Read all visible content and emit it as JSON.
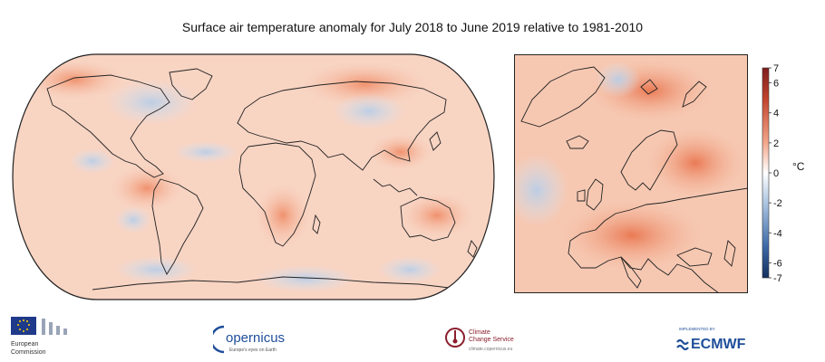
{
  "title": "Surface air temperature anomaly for July 2018 to June 2019 relative to 1981-2010",
  "colorbar": {
    "unit": "°C",
    "ticks": [
      7,
      6,
      4,
      2,
      0,
      -2,
      -4,
      -6,
      -7
    ],
    "range": [
      -7,
      7
    ],
    "colors": {
      "warm": "#8b1a1a",
      "neutral": "#ffffff",
      "cool": "#1c3f7a"
    }
  },
  "maps": {
    "world": {
      "projection": "robinson",
      "dominant_anomaly": "warm"
    },
    "europe": {
      "region": "Europe / North Atlantic",
      "dominant_anomaly": "warm"
    }
  },
  "logos": {
    "ec": {
      "line1": "European",
      "line2": "Commission"
    },
    "copernicus": {
      "name": "opernicus",
      "tagline": "Europe's eyes on Earth"
    },
    "c3s": {
      "line1": "Climate",
      "line2": "Change Service",
      "url": "climate.copernicus.eu"
    },
    "ecmwf": {
      "prefix": "IMPLEMENTED BY",
      "name": "ECMWF"
    }
  }
}
